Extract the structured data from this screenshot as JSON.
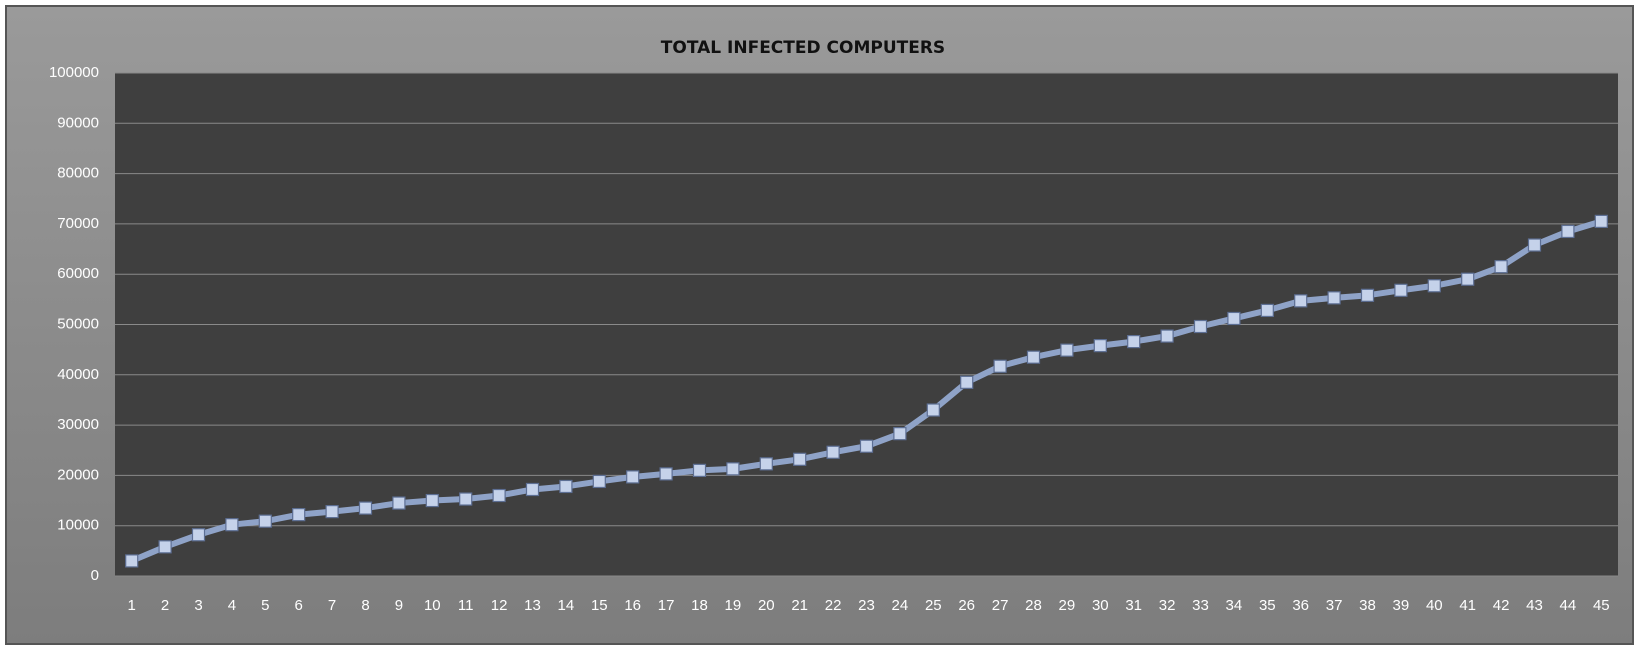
{
  "chart_data": {
    "type": "line",
    "title": "TOTAL INFECTED COMPUTERS",
    "categories": [
      "1",
      "2",
      "3",
      "4",
      "5",
      "6",
      "7",
      "8",
      "9",
      "10",
      "11",
      "12",
      "13",
      "14",
      "15",
      "16",
      "17",
      "18",
      "19",
      "20",
      "21",
      "22",
      "23",
      "24",
      "25",
      "26",
      "27",
      "28",
      "29",
      "30",
      "31",
      "32",
      "33",
      "34",
      "35",
      "36",
      "37",
      "38",
      "39",
      "40",
      "41",
      "42",
      "43",
      "44",
      "45"
    ],
    "series": [
      {
        "color": "#8fa3c8",
        "values": [
          3000,
          5800,
          8200,
          10200,
          10900,
          12200,
          12800,
          13500,
          14500,
          15000,
          15300,
          16000,
          17200,
          17800,
          18800,
          19700,
          20300,
          21000,
          21300,
          22300,
          23200,
          24600,
          25800,
          28300,
          33000,
          38500,
          41700,
          43500,
          44900,
          45800,
          46600,
          47700,
          49600,
          51200,
          52800,
          54700,
          55300,
          55800,
          56800,
          57700,
          59000,
          61500,
          65800,
          68500,
          70500
        ]
      }
    ],
    "ylim": [
      0,
      100000
    ],
    "yticks": [
      0,
      10000,
      20000,
      30000,
      40000,
      50000,
      60000,
      70000,
      80000,
      90000,
      100000
    ],
    "grid": true
  }
}
